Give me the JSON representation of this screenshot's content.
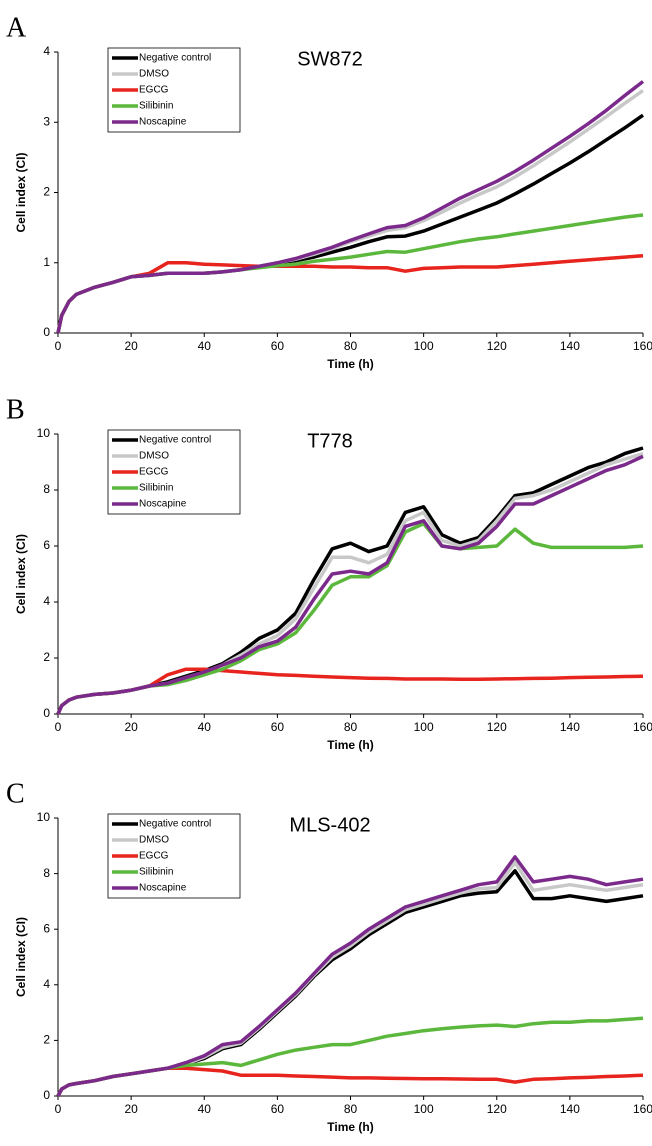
{
  "chart_data": [
    {
      "type": "line",
      "panel_label": "A",
      "title": "SW872",
      "x_label": "Time (h)",
      "y_label": "Cell index (CI)",
      "x": [
        0,
        1,
        3,
        5,
        10,
        15,
        20,
        25,
        30,
        35,
        40,
        45,
        50,
        55,
        60,
        65,
        70,
        75,
        80,
        85,
        90,
        95,
        100,
        105,
        110,
        115,
        120,
        125,
        130,
        135,
        140,
        145,
        150,
        155,
        160
      ],
      "xlim": [
        0,
        160
      ],
      "xticks": [
        0,
        20,
        40,
        60,
        80,
        100,
        120,
        140,
        160
      ],
      "ylim": [
        0,
        4
      ],
      "yticks": [
        0,
        1,
        2,
        3,
        4
      ],
      "grid": false,
      "legend": "upper left",
      "series": [
        {
          "name": "Negative control",
          "color": "#000000",
          "values": [
            0,
            0.25,
            0.45,
            0.55,
            0.65,
            0.72,
            0.8,
            0.82,
            0.85,
            0.85,
            0.85,
            0.87,
            0.9,
            0.95,
            1.0,
            1.03,
            1.08,
            1.15,
            1.22,
            1.3,
            1.37,
            1.38,
            1.45,
            1.55,
            1.65,
            1.75,
            1.85,
            1.98,
            2.12,
            2.27,
            2.42,
            2.58,
            2.75,
            2.92,
            3.1
          ]
        },
        {
          "name": "DMSO",
          "color": "#c8c8c8",
          "values": [
            0,
            0.25,
            0.45,
            0.55,
            0.65,
            0.72,
            0.8,
            0.82,
            0.85,
            0.85,
            0.85,
            0.87,
            0.9,
            0.95,
            1.0,
            1.05,
            1.12,
            1.2,
            1.3,
            1.38,
            1.46,
            1.5,
            1.6,
            1.72,
            1.85,
            1.97,
            2.08,
            2.22,
            2.38,
            2.55,
            2.72,
            2.9,
            3.08,
            3.27,
            3.45
          ]
        },
        {
          "name": "EGCG",
          "color": "#e8241e",
          "values": [
            0,
            0.25,
            0.45,
            0.55,
            0.65,
            0.72,
            0.8,
            0.85,
            1.0,
            1.0,
            0.98,
            0.97,
            0.96,
            0.95,
            0.95,
            0.95,
            0.95,
            0.94,
            0.94,
            0.93,
            0.93,
            0.88,
            0.92,
            0.93,
            0.94,
            0.94,
            0.94,
            0.96,
            0.98,
            1.0,
            1.02,
            1.04,
            1.06,
            1.08,
            1.1
          ]
        },
        {
          "name": "Silibinin",
          "color": "#5cb83c",
          "values": [
            0,
            0.25,
            0.45,
            0.55,
            0.65,
            0.72,
            0.8,
            0.82,
            0.85,
            0.85,
            0.85,
            0.87,
            0.9,
            0.93,
            0.96,
            0.98,
            1.02,
            1.05,
            1.08,
            1.12,
            1.16,
            1.15,
            1.2,
            1.25,
            1.3,
            1.34,
            1.37,
            1.41,
            1.45,
            1.49,
            1.53,
            1.57,
            1.61,
            1.65,
            1.68
          ]
        },
        {
          "name": "Noscapine",
          "color": "#7b2a8c",
          "values": [
            0,
            0.25,
            0.45,
            0.55,
            0.65,
            0.72,
            0.8,
            0.82,
            0.85,
            0.85,
            0.85,
            0.87,
            0.9,
            0.95,
            1.0,
            1.06,
            1.14,
            1.22,
            1.32,
            1.41,
            1.5,
            1.53,
            1.64,
            1.78,
            1.92,
            2.04,
            2.16,
            2.3,
            2.46,
            2.63,
            2.8,
            2.98,
            3.17,
            3.38,
            3.58
          ]
        }
      ]
    },
    {
      "type": "line",
      "panel_label": "B",
      "title": "T778",
      "x_label": "Time (h)",
      "y_label": "Cell index (CI)",
      "x": [
        0,
        1,
        3,
        5,
        10,
        15,
        20,
        25,
        30,
        35,
        40,
        45,
        50,
        55,
        60,
        65,
        70,
        75,
        80,
        85,
        90,
        95,
        100,
        105,
        110,
        115,
        120,
        125,
        130,
        135,
        140,
        145,
        150,
        155,
        160
      ],
      "xlim": [
        0,
        160
      ],
      "xticks": [
        0,
        20,
        40,
        60,
        80,
        100,
        120,
        140,
        160
      ],
      "ylim": [
        0,
        10
      ],
      "yticks": [
        0,
        2,
        4,
        6,
        8,
        10
      ],
      "grid": false,
      "legend": "upper left",
      "series": [
        {
          "name": "Negative control",
          "color": "#000000",
          "values": [
            0,
            0.3,
            0.5,
            0.6,
            0.7,
            0.75,
            0.85,
            1.0,
            1.15,
            1.35,
            1.55,
            1.8,
            2.2,
            2.7,
            3.0,
            3.6,
            4.8,
            5.9,
            6.1,
            5.8,
            6.0,
            7.2,
            7.4,
            6.4,
            6.1,
            6.3,
            7.0,
            7.8,
            7.9,
            8.2,
            8.5,
            8.8,
            9.0,
            9.3,
            9.5
          ]
        },
        {
          "name": "DMSO",
          "color": "#c8c8c8",
          "values": [
            0,
            0.3,
            0.5,
            0.6,
            0.7,
            0.75,
            0.85,
            1.0,
            1.1,
            1.3,
            1.5,
            1.75,
            2.1,
            2.5,
            2.8,
            3.4,
            4.5,
            5.6,
            5.6,
            5.4,
            5.7,
            6.9,
            7.2,
            6.2,
            6.0,
            6.2,
            6.9,
            7.7,
            7.8,
            8.0,
            8.3,
            8.6,
            8.9,
            9.1,
            9.3
          ]
        },
        {
          "name": "EGCG",
          "color": "#e8241e",
          "values": [
            0,
            0.3,
            0.5,
            0.6,
            0.7,
            0.75,
            0.85,
            1.0,
            1.4,
            1.6,
            1.6,
            1.55,
            1.5,
            1.45,
            1.4,
            1.38,
            1.35,
            1.32,
            1.3,
            1.28,
            1.27,
            1.25,
            1.25,
            1.25,
            1.24,
            1.24,
            1.25,
            1.26,
            1.27,
            1.28,
            1.3,
            1.31,
            1.32,
            1.34,
            1.35
          ]
        },
        {
          "name": "Silibinin",
          "color": "#5cb83c",
          "values": [
            0,
            0.3,
            0.5,
            0.6,
            0.7,
            0.75,
            0.85,
            1.0,
            1.05,
            1.2,
            1.4,
            1.6,
            1.9,
            2.3,
            2.5,
            2.9,
            3.7,
            4.6,
            4.9,
            4.9,
            5.3,
            6.5,
            6.8,
            6.0,
            5.9,
            5.95,
            6.0,
            6.6,
            6.1,
            5.95,
            5.95,
            5.95,
            5.95,
            5.95,
            6.0
          ]
        },
        {
          "name": "Noscapine",
          "color": "#7b2a8c",
          "values": [
            0,
            0.3,
            0.5,
            0.6,
            0.7,
            0.75,
            0.85,
            1.0,
            1.1,
            1.3,
            1.5,
            1.75,
            2.0,
            2.4,
            2.6,
            3.1,
            4.1,
            5.0,
            5.1,
            5.0,
            5.4,
            6.7,
            6.9,
            6.0,
            5.9,
            6.1,
            6.7,
            7.5,
            7.5,
            7.8,
            8.1,
            8.4,
            8.7,
            8.9,
            9.2
          ]
        }
      ]
    },
    {
      "type": "line",
      "panel_label": "C",
      "title": "MLS-402",
      "x_label": "Time (h)",
      "y_label": "Cell index (CI)",
      "x": [
        0,
        1,
        3,
        5,
        10,
        15,
        20,
        25,
        30,
        35,
        40,
        45,
        50,
        55,
        60,
        65,
        70,
        75,
        80,
        85,
        90,
        95,
        100,
        105,
        110,
        115,
        120,
        125,
        130,
        135,
        140,
        145,
        150,
        155,
        160
      ],
      "xlim": [
        0,
        160
      ],
      "xticks": [
        0,
        20,
        40,
        60,
        80,
        100,
        120,
        140,
        160
      ],
      "ylim": [
        0,
        10
      ],
      "yticks": [
        0,
        2,
        4,
        6,
        8,
        10
      ],
      "grid": false,
      "legend": "upper left",
      "series": [
        {
          "name": "Negative control",
          "color": "#000000",
          "values": [
            0,
            0.25,
            0.4,
            0.45,
            0.55,
            0.7,
            0.8,
            0.9,
            1.0,
            1.15,
            1.35,
            1.7,
            1.85,
            2.4,
            3.0,
            3.6,
            4.3,
            4.9,
            5.3,
            5.8,
            6.2,
            6.6,
            6.8,
            7.0,
            7.2,
            7.3,
            7.35,
            8.1,
            7.1,
            7.1,
            7.2,
            7.1,
            7.0,
            7.1,
            7.2
          ]
        },
        {
          "name": "DMSO",
          "color": "#c8c8c8",
          "values": [
            0,
            0.25,
            0.4,
            0.45,
            0.55,
            0.7,
            0.8,
            0.9,
            1.0,
            1.15,
            1.4,
            1.75,
            1.9,
            2.45,
            3.05,
            3.65,
            4.35,
            5.0,
            5.4,
            5.9,
            6.3,
            6.7,
            6.9,
            7.1,
            7.3,
            7.45,
            7.5,
            8.4,
            7.4,
            7.5,
            7.6,
            7.5,
            7.4,
            7.5,
            7.6
          ]
        },
        {
          "name": "EGCG",
          "color": "#e8241e",
          "values": [
            0,
            0.25,
            0.4,
            0.45,
            0.55,
            0.7,
            0.8,
            0.9,
            1.0,
            1.0,
            0.95,
            0.9,
            0.75,
            0.75,
            0.75,
            0.72,
            0.7,
            0.68,
            0.65,
            0.65,
            0.64,
            0.63,
            0.62,
            0.62,
            0.61,
            0.6,
            0.6,
            0.5,
            0.6,
            0.62,
            0.65,
            0.67,
            0.7,
            0.72,
            0.75
          ]
        },
        {
          "name": "Silibinin",
          "color": "#5cb83c",
          "values": [
            0,
            0.25,
            0.4,
            0.45,
            0.55,
            0.7,
            0.8,
            0.9,
            1.0,
            1.1,
            1.15,
            1.2,
            1.1,
            1.3,
            1.5,
            1.65,
            1.75,
            1.85,
            1.85,
            2.0,
            2.15,
            2.25,
            2.35,
            2.42,
            2.48,
            2.52,
            2.55,
            2.5,
            2.6,
            2.65,
            2.65,
            2.7,
            2.7,
            2.75,
            2.8
          ]
        },
        {
          "name": "Noscapine",
          "color": "#7b2a8c",
          "values": [
            0,
            0.25,
            0.4,
            0.45,
            0.55,
            0.7,
            0.8,
            0.9,
            1.0,
            1.2,
            1.45,
            1.85,
            1.95,
            2.5,
            3.1,
            3.7,
            4.4,
            5.1,
            5.5,
            6.0,
            6.4,
            6.8,
            7.0,
            7.2,
            7.4,
            7.6,
            7.7,
            8.6,
            7.7,
            7.8,
            7.9,
            7.8,
            7.6,
            7.7,
            7.8
          ]
        }
      ]
    }
  ]
}
